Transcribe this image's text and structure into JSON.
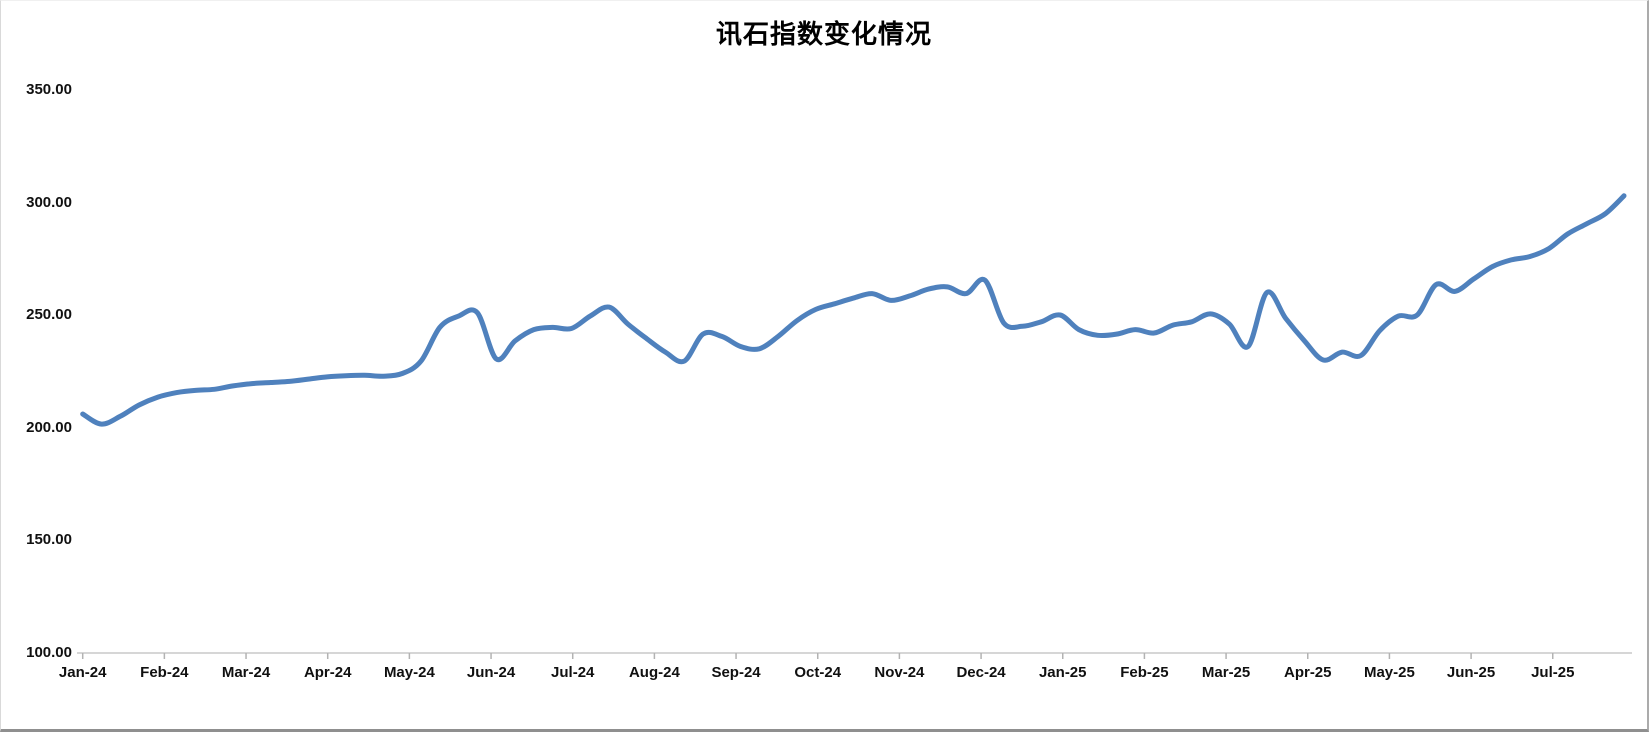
{
  "window": {
    "background": "#ffffff"
  },
  "chart_data": {
    "type": "line",
    "title": "讯石指数变化情况",
    "smooth": true,
    "grid": false,
    "legend": "none",
    "line_color": "#4F81BD",
    "axis_color": "#d6d6d6",
    "tick_color": "#b3b3b3",
    "label_color": "#101010",
    "ylim": [
      100,
      350
    ],
    "y_ticks": [
      350,
      300,
      250,
      200,
      150,
      100
    ],
    "y_tick_labels": [
      "350.00",
      "300.00",
      "250.00",
      "200.00",
      "150.00",
      "100.00"
    ],
    "x_labels": [
      "Jan-24",
      "Feb-24",
      "Mar-24",
      "Apr-24",
      "May-24",
      "Jun-24",
      "Jul-24",
      "Aug-24",
      "Sep-24",
      "Oct-24",
      "Nov-24",
      "Dec-24",
      "Jan-25",
      "Feb-25",
      "Mar-25",
      "Apr-25",
      "May-25",
      "Jun-25",
      "Jul-25"
    ],
    "x_unit": "week",
    "values": [
      206,
      201.5,
      205,
      210,
      213.5,
      215.5,
      216.5,
      217,
      218.5,
      219.5,
      220,
      220.5,
      221.5,
      222.5,
      223,
      223.2,
      222.8,
      224,
      229.5,
      244.5,
      249.5,
      251,
      230.5,
      238.5,
      243.5,
      244.5,
      244,
      249.5,
      253.5,
      246,
      239.5,
      233.5,
      229.5,
      241.5,
      240.5,
      236,
      235,
      240.5,
      247.5,
      252.5,
      255,
      257.5,
      259.5,
      256.5,
      258.5,
      261.5,
      262.5,
      259.5,
      265.5,
      246.5,
      245,
      247,
      250,
      243.5,
      241,
      241.5,
      243.5,
      242,
      245.5,
      247,
      250.5,
      246,
      236,
      260,
      248.5,
      238.5,
      230,
      233.5,
      232,
      243,
      249.5,
      250,
      263.5,
      260.5,
      266,
      271.5,
      274.5,
      276,
      279.5,
      286,
      290.5,
      295,
      303
    ]
  }
}
